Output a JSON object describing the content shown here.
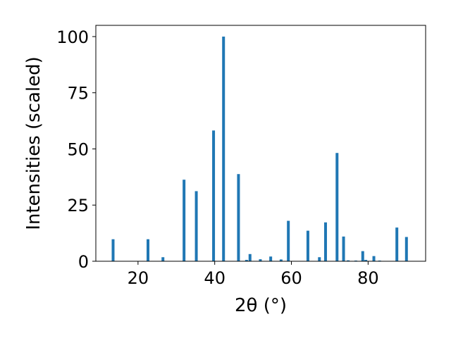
{
  "chart_data": {
    "type": "bar",
    "xlabel": "2θ (°)",
    "ylabel": "Intensities (scaled)",
    "xlim": [
      9,
      95
    ],
    "ylim": [
      0,
      105
    ],
    "x_ticks": [
      20,
      40,
      60,
      80
    ],
    "y_ticks": [
      0,
      25,
      50,
      75,
      100
    ],
    "grid": false,
    "bar_color": "#1f77b4",
    "series": [
      {
        "x": [
          13.5,
          22.6,
          26.5,
          32.0,
          35.2,
          39.7,
          42.3,
          46.2,
          48.3,
          49.2,
          51.9,
          54.6,
          57.3,
          59.2,
          64.3,
          67.3,
          68.9,
          71.9,
          73.6,
          74.8,
          76.8,
          78.6,
          79.4,
          81.5,
          83.0,
          87.5,
          90.0
        ],
        "values": [
          9.8,
          9.8,
          1.8,
          36.3,
          31.2,
          58.2,
          100,
          38.8,
          0.6,
          3.2,
          0.9,
          2.1,
          0.8,
          18.0,
          13.6,
          1.8,
          17.3,
          48.2,
          11.0,
          0.4,
          0.3,
          4.5,
          0.6,
          2.3,
          0.3,
          15.0,
          10.8
        ]
      }
    ]
  }
}
